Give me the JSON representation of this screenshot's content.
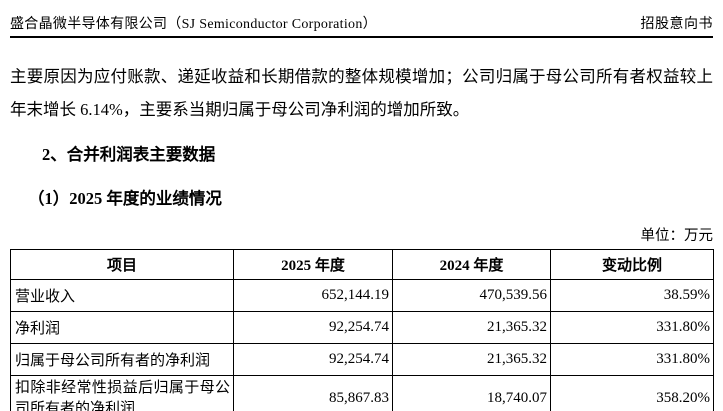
{
  "header": {
    "company": "盛合晶微半导体有限公司（SJ Semiconductor Corporation）",
    "doc_type": "招股意向书"
  },
  "body": {
    "paragraph": "主要原因为应付账款、递延收益和长期借款的整体规模增加；公司归属于母公司所有者权益较上年末增长 6.14%，主要系当期归属于母公司净利润的增加所致。",
    "section_heading": "2、合并利润表主要数据",
    "subsection_heading": "（1）2025 年度的业绩情况",
    "unit_label": "单位：万元"
  },
  "table": {
    "headers": [
      "项目",
      "2025 年度",
      "2024 年度",
      "变动比例"
    ],
    "rows": [
      [
        "营业收入",
        "652,144.19",
        "470,539.56",
        "38.59%"
      ],
      [
        "净利润",
        "92,254.74",
        "21,365.32",
        "331.80%"
      ],
      [
        "归属于母公司所有者的净利润",
        "92,254.74",
        "21,365.32",
        "331.80%"
      ],
      [
        "扣除非经常性损益后归属于母公司所有者的净利润",
        "85,867.83",
        "18,740.07",
        "358.20%"
      ]
    ]
  }
}
